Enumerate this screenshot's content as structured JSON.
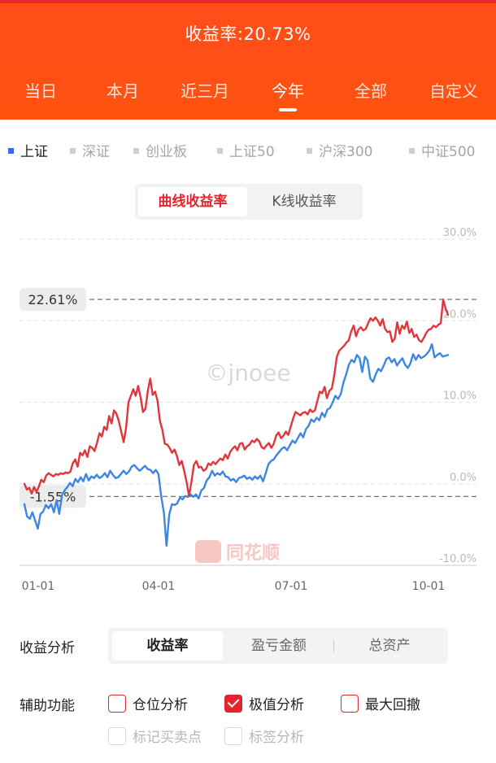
{
  "header": {
    "return_title": "收益率:20.73%",
    "range_tabs": [
      "当日",
      "本月",
      "近三月",
      "今年",
      "全部",
      "自定义"
    ],
    "active_range": "今年"
  },
  "indices": {
    "items": [
      "上证",
      "深证",
      "创业板",
      "上证50",
      "沪深300",
      "中证500"
    ],
    "active": "上证"
  },
  "chart_type": {
    "options": [
      "曲线收益率",
      "K线收益率"
    ],
    "active": "曲线收益率"
  },
  "chart_data": {
    "type": "line",
    "ylim": [
      -10,
      30
    ],
    "yticks": [
      "30.0%",
      "20.0%",
      "10.0%",
      "0.0%",
      "-10.0%"
    ],
    "x_tick_labels": [
      "01-01",
      "04-01",
      "07-01",
      "10-01"
    ],
    "max_label": "22.61%",
    "min_label": "-1.55%",
    "max_value": 22.61,
    "min_value": -1.55,
    "watermark": "©jnoee",
    "brand": "同花顺",
    "colors": {
      "portfolio": "#e0353b",
      "index": "#3d86e3"
    },
    "series": [
      {
        "color": "#e0353b",
        "values": [
          0.0,
          -0.7,
          -0.5,
          -1.2,
          -0.4,
          -1.0,
          -0.3,
          0.5,
          0.2,
          1.0,
          1.3,
          1.1,
          0.9,
          1.2,
          1.1,
          1.3,
          1.2,
          1.4,
          1.3,
          1.5,
          2.5,
          3.0,
          2.1,
          3.8,
          3.5,
          4.1,
          3.3,
          4.6,
          4.4,
          4.0,
          5.0,
          6.2,
          5.8,
          7.0,
          6.6,
          8.3,
          7.4,
          9.0,
          8.6,
          7.7,
          6.4,
          5.1,
          6.8,
          10.0,
          10.8,
          11.6,
          10.8,
          12.0,
          10.6,
          8.8,
          9.2,
          11.4,
          12.9,
          10.9,
          11.3,
          10.2,
          7.7,
          6.6,
          4.9,
          4.8,
          4.4,
          3.8,
          4.2,
          3.4,
          2.3,
          2.8,
          1.6,
          0.2,
          -1.5,
          0.2,
          2.3,
          2.8,
          2.0,
          2.1,
          1.6,
          1.8,
          2.5,
          2.3,
          2.7,
          2.4,
          2.8,
          3.1,
          2.9,
          3.6,
          3.1,
          3.9,
          4.3,
          4.6,
          4.1,
          4.9,
          5.0,
          4.2,
          4.6,
          4.8,
          5.3,
          5.1,
          5.5,
          5.2,
          4.5,
          4.3,
          4.7,
          5.0,
          4.4,
          4.9,
          5.9,
          6.3,
          5.6,
          5.9,
          6.4,
          6.0,
          7.0,
          8.0,
          8.8,
          8.6,
          8.4,
          8.7,
          8.8,
          8.5,
          9.1,
          8.8,
          9.0,
          10.1,
          11.3,
          11.1,
          11.9,
          10.5,
          11.4,
          11.7,
          13.3,
          15.5,
          16.3,
          16.6,
          16.9,
          17.3,
          17.6,
          18.7,
          19.4,
          18.1,
          18.9,
          19.2,
          18.8,
          19.0,
          19.7,
          20.3,
          20.0,
          20.4,
          20.0,
          19.4,
          20.2,
          19.0,
          18.6,
          18.7,
          17.4,
          17.8,
          19.8,
          18.4,
          19.4,
          19.0,
          19.9,
          18.5,
          19.0,
          18.0,
          18.3,
          17.6,
          17.4,
          17.9,
          18.5,
          18.9,
          19.0,
          19.4,
          19.2,
          19.5,
          19.7,
          22.6,
          21.5,
          20.7
        ]
      },
      {
        "color": "#3d86e3",
        "values": [
          -2.5,
          -4.0,
          -4.3,
          -3.5,
          -4.5,
          -5.5,
          -3.7,
          -3.4,
          -2.6,
          -3.0,
          -2.5,
          -3.5,
          -2.0,
          -3.7,
          -1.4,
          -0.8,
          -0.4,
          0.1,
          -0.3,
          0.6,
          0.2,
          0.8,
          0.3,
          1.2,
          0.4,
          0.9,
          0.7,
          1.1,
          0.7,
          0.9,
          1.3,
          0.8,
          1.6,
          1.1,
          0.7,
          0.8,
          1.2,
          1.6,
          1.2,
          1.5,
          2.1,
          2.3,
          1.9,
          1.6,
          1.9,
          2.2,
          1.8,
          1.7,
          1.3,
          1.7,
          1.2,
          -1.5,
          -3.5,
          -7.6,
          -3.8,
          -2.5,
          -2.6,
          -2.4,
          -1.7,
          -1.9,
          -1.5,
          -1.6,
          -1.3,
          -1.6,
          -1.3,
          -1.8,
          -0.8,
          -0.5,
          0.4,
          0.8,
          1.6,
          1.0,
          1.3,
          1.1,
          1.5,
          0.9,
          0.8,
          0.4,
          0.6,
          0.2,
          0.7,
          0.8,
          1.0,
          0.6,
          0.8,
          0.5,
          0.9,
          0.6,
          1.0,
          0.3,
          1.3,
          2.4,
          2.8,
          3.0,
          3.5,
          3.9,
          4.3,
          4.5,
          4.1,
          4.7,
          5.3,
          5.0,
          5.6,
          6.2,
          5.7,
          6.7,
          7.1,
          7.9,
          7.6,
          8.1,
          7.8,
          8.7,
          8.2,
          9.1,
          9.3,
          10.0,
          10.8,
          10.4,
          11.0,
          12.4,
          13.4,
          14.6,
          15.2,
          14.9,
          15.8,
          15.4,
          13.7,
          15.6,
          15.1,
          12.9,
          12.5,
          13.4,
          14.1,
          13.8,
          14.5,
          15.3,
          15.5,
          14.9,
          15.3,
          14.5,
          15.0,
          15.4,
          14.6,
          14.2,
          14.8,
          15.9,
          15.2,
          15.8,
          15.4,
          15.6,
          15.9,
          16.3,
          17.1,
          15.5,
          15.8,
          16.0,
          15.6,
          15.7,
          15.8
        ]
      }
    ]
  },
  "analysis": {
    "label": "收益分析",
    "options": [
      "收益率",
      "盈亏金额",
      "总资产"
    ],
    "active": "收益率"
  },
  "assist": {
    "label": "辅助功能",
    "items": [
      {
        "label": "仓位分析",
        "checked": false,
        "disabled": false
      },
      {
        "label": "极值分析",
        "checked": true,
        "disabled": false
      },
      {
        "label": "最大回撤",
        "checked": false,
        "disabled": false
      },
      {
        "label": "标记买卖点",
        "checked": false,
        "disabled": true
      },
      {
        "label": "标签分析",
        "checked": false,
        "disabled": true
      }
    ]
  }
}
